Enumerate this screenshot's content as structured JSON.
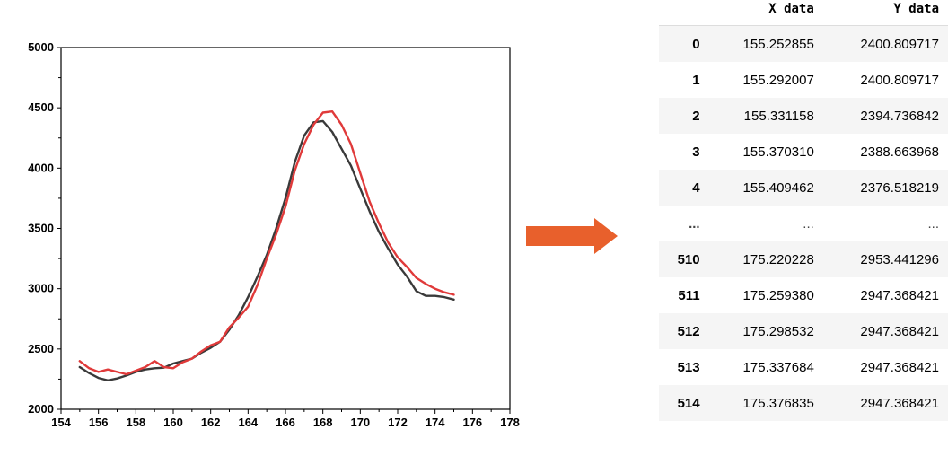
{
  "chart_data": {
    "type": "line",
    "title": "",
    "xlabel": "",
    "ylabel": "",
    "xlim": [
      154,
      178
    ],
    "ylim": [
      2000,
      5000
    ],
    "x_ticks": [
      154,
      156,
      158,
      160,
      162,
      164,
      166,
      168,
      170,
      172,
      174,
      176,
      178
    ],
    "y_ticks": [
      2000,
      2500,
      3000,
      3500,
      4000,
      4500,
      5000
    ],
    "grid": false,
    "legend": "none",
    "series": [
      {
        "color": "#3a3a3a",
        "points": [
          [
            155.0,
            2350
          ],
          [
            155.5,
            2300
          ],
          [
            156.0,
            2260
          ],
          [
            156.5,
            2240
          ],
          [
            157.0,
            2255
          ],
          [
            157.5,
            2280
          ],
          [
            158.0,
            2310
          ],
          [
            158.5,
            2330
          ],
          [
            159.0,
            2340
          ],
          [
            159.5,
            2345
          ],
          [
            160.0,
            2380
          ],
          [
            160.5,
            2400
          ],
          [
            161.0,
            2420
          ],
          [
            161.5,
            2470
          ],
          [
            162.0,
            2510
          ],
          [
            162.5,
            2560
          ],
          [
            163.0,
            2660
          ],
          [
            163.5,
            2780
          ],
          [
            164.0,
            2930
          ],
          [
            164.5,
            3100
          ],
          [
            165.0,
            3280
          ],
          [
            165.5,
            3500
          ],
          [
            166.0,
            3750
          ],
          [
            166.5,
            4050
          ],
          [
            167.0,
            4270
          ],
          [
            167.5,
            4380
          ],
          [
            168.0,
            4390
          ],
          [
            168.5,
            4300
          ],
          [
            169.0,
            4160
          ],
          [
            169.5,
            4020
          ],
          [
            170.0,
            3830
          ],
          [
            170.5,
            3640
          ],
          [
            171.0,
            3470
          ],
          [
            171.5,
            3330
          ],
          [
            172.0,
            3200
          ],
          [
            172.5,
            3100
          ],
          [
            173.0,
            2980
          ],
          [
            173.5,
            2940
          ],
          [
            174.0,
            2940
          ],
          [
            174.5,
            2930
          ],
          [
            175.0,
            2910
          ]
        ]
      },
      {
        "color": "#e03a3a",
        "points": [
          [
            155.0,
            2400
          ],
          [
            155.5,
            2340
          ],
          [
            156.0,
            2310
          ],
          [
            156.5,
            2330
          ],
          [
            157.0,
            2310
          ],
          [
            157.5,
            2290
          ],
          [
            158.0,
            2320
          ],
          [
            158.5,
            2350
          ],
          [
            159.0,
            2400
          ],
          [
            159.5,
            2350
          ],
          [
            160.0,
            2340
          ],
          [
            160.5,
            2390
          ],
          [
            161.0,
            2420
          ],
          [
            161.5,
            2480
          ],
          [
            162.0,
            2530
          ],
          [
            162.5,
            2560
          ],
          [
            163.0,
            2680
          ],
          [
            163.5,
            2760
          ],
          [
            164.0,
            2850
          ],
          [
            164.5,
            3030
          ],
          [
            165.0,
            3250
          ],
          [
            165.5,
            3450
          ],
          [
            166.0,
            3680
          ],
          [
            166.5,
            3980
          ],
          [
            167.0,
            4200
          ],
          [
            167.5,
            4360
          ],
          [
            168.0,
            4460
          ],
          [
            168.5,
            4470
          ],
          [
            169.0,
            4360
          ],
          [
            169.5,
            4200
          ],
          [
            170.0,
            3960
          ],
          [
            170.5,
            3720
          ],
          [
            171.0,
            3540
          ],
          [
            171.5,
            3380
          ],
          [
            172.0,
            3260
          ],
          [
            172.5,
            3180
          ],
          [
            173.0,
            3090
          ],
          [
            173.5,
            3040
          ],
          [
            174.0,
            3000
          ],
          [
            174.5,
            2970
          ],
          [
            175.0,
            2950
          ]
        ]
      }
    ]
  },
  "table": {
    "headers": [
      "",
      "X data",
      "Y data"
    ],
    "rows": [
      [
        "0",
        "155.252855",
        "2400.809717"
      ],
      [
        "1",
        "155.292007",
        "2400.809717"
      ],
      [
        "2",
        "155.331158",
        "2394.736842"
      ],
      [
        "3",
        "155.370310",
        "2388.663968"
      ],
      [
        "4",
        "155.409462",
        "2376.518219"
      ],
      [
        "...",
        "...",
        "..."
      ],
      [
        "510",
        "175.220228",
        "2953.441296"
      ],
      [
        "511",
        "175.259380",
        "2947.368421"
      ],
      [
        "512",
        "175.298532",
        "2947.368421"
      ],
      [
        "513",
        "175.337684",
        "2947.368421"
      ],
      [
        "514",
        "175.376835",
        "2947.368421"
      ]
    ]
  },
  "colors": {
    "arrow": "#e8602c",
    "axis": "#000000"
  },
  "icons": {
    "arrow": "right-arrow-icon"
  }
}
